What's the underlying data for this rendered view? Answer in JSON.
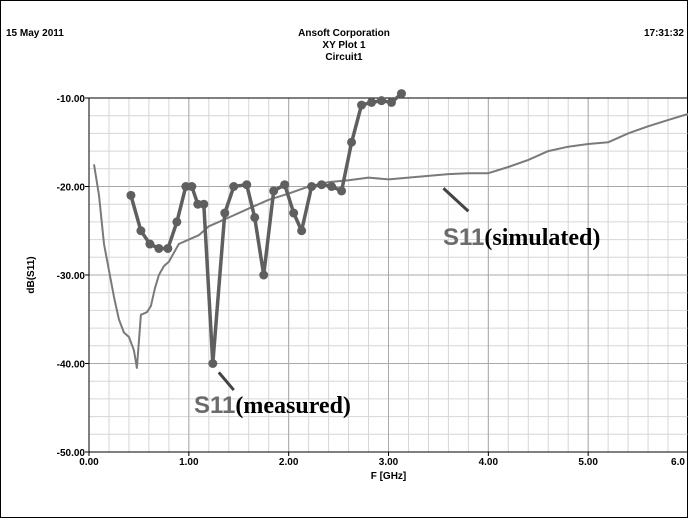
{
  "header": {
    "date": "15 May 2011",
    "company": "Ansoft Corporation",
    "plot_title": "XY Plot 1",
    "design": "Circuit1",
    "time": "17:31:32"
  },
  "colors": {
    "simulated": "#7a7a7a",
    "measured": "#5f5f5f",
    "grid_major": "#a9a9a9",
    "grid_minor": "#d6d6d6"
  },
  "chart_data": {
    "type": "line",
    "title": "XY Plot 1",
    "xlabel": "F [GHz]",
    "ylabel": "dB(S11)",
    "xlim": [
      0,
      6
    ],
    "ylim": [
      -50,
      -10
    ],
    "grid": true,
    "x_ticks": [
      0.0,
      1.0,
      2.0,
      3.0,
      4.0,
      5.0,
      6.0
    ],
    "x_tick_labels": [
      "0.00",
      "1.00",
      "2.00",
      "3.00",
      "4.00",
      "5.00",
      "6.0"
    ],
    "y_ticks": [
      -10,
      -20,
      -30,
      -40,
      -50
    ],
    "y_tick_labels": [
      "-10.00",
      "-20.00",
      "-30.00",
      "-40.00",
      "-50.00"
    ],
    "series": [
      {
        "key": "simulated",
        "label_symbol": "S11",
        "label_text": "(simulated)",
        "x": [
          0.05,
          0.1,
          0.15,
          0.2,
          0.25,
          0.3,
          0.35,
          0.4,
          0.45,
          0.48,
          0.52,
          0.58,
          0.62,
          0.66,
          0.7,
          0.75,
          0.8,
          0.9,
          1.0,
          1.1,
          1.2,
          1.3,
          1.4,
          1.6,
          1.8,
          2.0,
          2.2,
          2.4,
          2.6,
          2.8,
          3.0,
          3.2,
          3.4,
          3.6,
          3.8,
          4.0,
          4.2,
          4.4,
          4.6,
          4.8,
          5.0,
          5.2,
          5.4,
          5.6,
          5.8,
          6.0
        ],
        "y": [
          -17.5,
          -21.0,
          -26.5,
          -29.5,
          -32.5,
          -35.0,
          -36.5,
          -37.0,
          -38.5,
          -40.5,
          -34.5,
          -34.2,
          -33.5,
          -31.5,
          -30.0,
          -29.0,
          -28.5,
          -26.5,
          -26.0,
          -25.5,
          -24.5,
          -24.0,
          -23.5,
          -22.5,
          -21.5,
          -20.8,
          -20.0,
          -19.5,
          -19.3,
          -19.0,
          -19.2,
          -19.0,
          -18.8,
          -18.6,
          -18.5,
          -18.5,
          -17.8,
          -17.0,
          -16.0,
          -15.5,
          -15.2,
          -15.0,
          -14.0,
          -13.2,
          -12.5,
          -11.8
        ]
      },
      {
        "key": "measured",
        "label_symbol": "S11",
        "label_text": "(measured)",
        "x": [
          0.42,
          0.52,
          0.61,
          0.7,
          0.79,
          0.88,
          0.97,
          1.03,
          1.09,
          1.15,
          1.24,
          1.36,
          1.45,
          1.58,
          1.66,
          1.75,
          1.85,
          1.96,
          2.05,
          2.13,
          2.23,
          2.33,
          2.43,
          2.53,
          2.63,
          2.73,
          2.83,
          2.93,
          3.03,
          3.13
        ],
        "y": [
          -21.0,
          -25.0,
          -26.5,
          -27.0,
          -27.0,
          -24.0,
          -20.0,
          -20.0,
          -22.0,
          -22.0,
          -40.0,
          -23.0,
          -20.0,
          -19.8,
          -23.5,
          -30.0,
          -20.5,
          -19.8,
          -23.0,
          -25.0,
          -20.0,
          -19.8,
          -20.0,
          -20.5,
          -15.0,
          -10.8,
          -10.5,
          -10.3,
          -10.5,
          -9.5
        ]
      }
    ],
    "annotations": [
      {
        "series": "simulated",
        "anchor_x": 3.55,
        "anchor_y": -20.2,
        "tip_x": 3.8,
        "tip_y": -22.8
      },
      {
        "series": "measured",
        "anchor_x": 1.3,
        "anchor_y": -41.0,
        "tip_x": 1.45,
        "tip_y": -43.0
      }
    ]
  }
}
